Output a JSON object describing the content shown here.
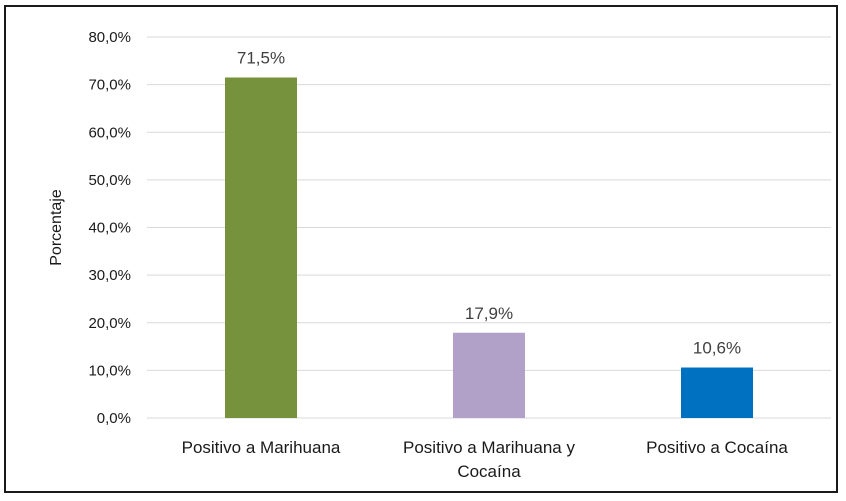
{
  "chart_data": {
    "type": "bar",
    "categories": [
      "Positivo a Marihuana",
      "Positivo a Marihuana y Cocaína",
      "Positivo a Cocaína"
    ],
    "category_lines": [
      [
        "Positivo a Marihuana"
      ],
      [
        "Positivo a Marihuana y",
        "Cocaína"
      ],
      [
        "Positivo a Cocaína"
      ]
    ],
    "values": [
      71.5,
      17.9,
      10.6
    ],
    "data_labels": [
      "71,5%",
      "17,9%",
      "10,6%"
    ],
    "bar_colors": [
      "#76923c",
      "#b1a0c7",
      "#0070c0"
    ],
    "title": "",
    "xlabel": "",
    "ylabel": "Porcentaje",
    "ylim": [
      0,
      80
    ],
    "y_ticks": [
      0,
      10,
      20,
      30,
      40,
      50,
      60,
      70,
      80
    ],
    "y_tick_labels": [
      "0,0%",
      "10,0%",
      "20,0%",
      "30,0%",
      "40,0%",
      "50,0%",
      "60,0%",
      "70,0%",
      "80,0%"
    ],
    "grid": true,
    "legend": "none",
    "gridline_color": "#d9d9d9",
    "text_color": "#1a1a1a"
  }
}
